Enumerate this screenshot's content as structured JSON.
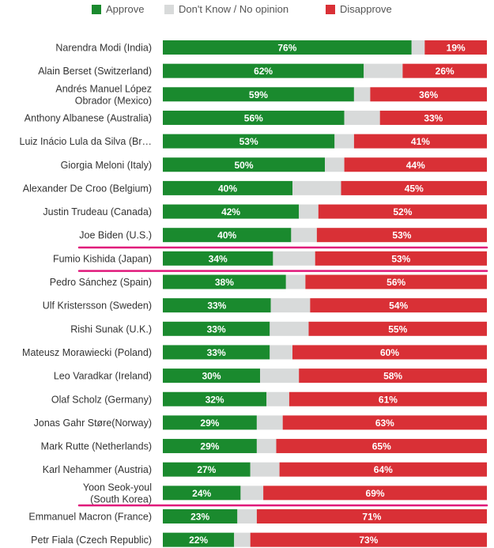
{
  "legend": {
    "approve": "Approve",
    "neutral": "Don't Know / No opinion",
    "disapprove": "Disapprove"
  },
  "colors": {
    "approve": "#1a8a2e",
    "neutral": "#d8dada",
    "disapprove": "#d93036",
    "highlight": "#e0187a"
  },
  "chart_data": {
    "type": "bar",
    "orientation": "horizontal",
    "stacked": true,
    "xlim": [
      0,
      100
    ],
    "categories": [
      [
        "Narendra Modi (India)"
      ],
      [
        "Alain Berset (Switzerland)"
      ],
      [
        "Andrés Manuel López",
        "Obrador (Mexico)"
      ],
      [
        "Anthony Albanese (Australia)"
      ],
      [
        "Luiz Inácio Lula da Silva (Br…"
      ],
      [
        "Giorgia Meloni (Italy)"
      ],
      [
        "Alexander De Croo (Belgium)"
      ],
      [
        "Justin Trudeau (Canada)"
      ],
      [
        "Joe Biden (U.S.)"
      ],
      [
        "Fumio Kishida (Japan)"
      ],
      [
        "Pedro Sánchez (Spain)"
      ],
      [
        "Ulf Kristersson (Sweden)"
      ],
      [
        "Rishi Sunak (U.K.)"
      ],
      [
        "Mateusz Morawiecki (Poland)"
      ],
      [
        "Leo Varadkar (Ireland)"
      ],
      [
        "Olaf Scholz (Germany)"
      ],
      [
        "Jonas Gahr Støre(Norway)"
      ],
      [
        "Mark Rutte (Netherlands)"
      ],
      [
        "Karl Nehammer (Austria)"
      ],
      [
        "Yoon Seok-youl",
        "(South Korea)"
      ],
      [
        "Emmanuel Macron (France)"
      ],
      [
        "Petr Fiala (Czech Republic)"
      ]
    ],
    "series": [
      {
        "name": "Approve",
        "values": [
          76,
          62,
          59,
          56,
          53,
          50,
          40,
          42,
          40,
          34,
          38,
          33,
          33,
          33,
          30,
          32,
          29,
          29,
          27,
          24,
          23,
          22
        ]
      },
      {
        "name": "Don't Know / No opinion",
        "values": [
          4,
          12,
          5,
          11,
          6,
          6,
          15,
          6,
          8,
          13,
          6,
          12,
          12,
          7,
          12,
          7,
          8,
          6,
          9,
          7,
          6,
          5
        ]
      },
      {
        "name": "Disapprove",
        "values": [
          19,
          26,
          36,
          33,
          41,
          44,
          45,
          52,
          53,
          53,
          56,
          54,
          55,
          60,
          58,
          61,
          63,
          65,
          64,
          69,
          71,
          73
        ]
      }
    ],
    "value_labels": {
      "approve": [
        "76%",
        "62%",
        "59%",
        "56%",
        "53%",
        "50%",
        "40%",
        "42%",
        "40%",
        "34%",
        "38%",
        "33%",
        "33%",
        "33%",
        "30%",
        "32%",
        "29%",
        "29%",
        "27%",
        "24%",
        "23%",
        "22%"
      ],
      "disapprove": [
        "19%",
        "26%",
        "36%",
        "33%",
        "41%",
        "44%",
        "45%",
        "52%",
        "53%",
        "53%",
        "56%",
        "54%",
        "55%",
        "60%",
        "58%",
        "61%",
        "63%",
        "65%",
        "64%",
        "69%",
        "71%",
        "73%"
      ]
    },
    "highlighted": [
      "Joe Biden (U.S.)",
      "Fumio Kishida (Japan)",
      "Yoon Seok-youl (South Korea)"
    ]
  }
}
